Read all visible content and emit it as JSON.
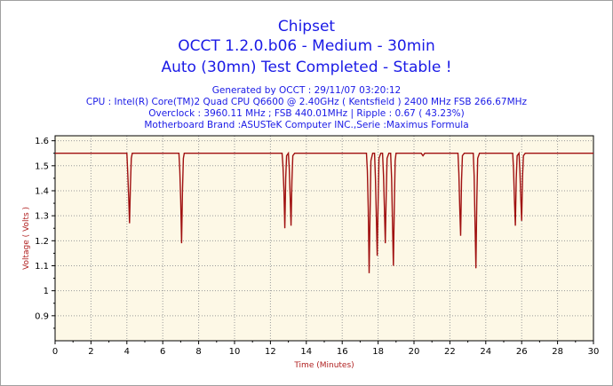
{
  "header": {
    "title1": "Chipset",
    "title2": "OCCT 1.2.0.b06 - Medium - 30min",
    "title3": "Auto (30mn) Test Completed - Stable !",
    "generated": "Generated by OCCT : 29/11/07 03:20:12",
    "cpu": "CPU : Intel(R) Core(TM)2 Quad CPU Q6600 @ 2.40GHz ( Kentsfield ) 2400 MHz FSB 266.67MHz",
    "overclock": "Overclock : 3960.11 MHz ; FSB 440.01MHz | Ripple : 0.67 ( 43.23%)",
    "motherboard": "Motherboard Brand :ASUSTeK Computer INC.,Serie :Maximus Formula"
  },
  "colors": {
    "line": "#a01010",
    "plot_bg": "#fdf8e6",
    "grid": "#9a9a9a",
    "title": "#1a1ae6",
    "axis_title": "#b02020"
  },
  "chart_data": {
    "type": "line",
    "xlabel": "Time (Minutes)",
    "ylabel": "Voltage ( Volts )",
    "xlim": [
      0,
      30
    ],
    "ylim": [
      0.8,
      1.62
    ],
    "xticks": [
      0,
      2,
      4,
      6,
      8,
      10,
      12,
      14,
      16,
      18,
      20,
      22,
      24,
      26,
      28,
      30
    ],
    "yticks": [
      0.9,
      1,
      1.1,
      1.2,
      1.3,
      1.4,
      1.5,
      1.6
    ],
    "ytick_labels": [
      "0.9",
      "1",
      "1.1",
      "1.2",
      "1.3",
      "1.4",
      "1.5",
      "1.6"
    ],
    "grid": true,
    "series": [
      {
        "name": "",
        "x": [
          0,
          4.0,
          4.05,
          4.1,
          4.15,
          4.2,
          4.25,
          4.3,
          6.9,
          6.95,
          7.0,
          7.05,
          7.1,
          7.15,
          7.2,
          12.65,
          12.7,
          12.75,
          12.8,
          12.85,
          12.9,
          13.0,
          13.05,
          13.1,
          13.15,
          13.2,
          13.25,
          13.35,
          17.35,
          17.4,
          17.45,
          17.5,
          17.55,
          17.6,
          17.7,
          17.8,
          17.85,
          17.9,
          17.95,
          18.0,
          18.05,
          18.15,
          18.25,
          18.3,
          18.35,
          18.4,
          18.45,
          18.5,
          18.6,
          18.7,
          18.75,
          18.8,
          18.85,
          18.9,
          18.95,
          19.0,
          19.1,
          20.4,
          20.5,
          20.6,
          22.45,
          22.5,
          22.55,
          22.6,
          22.65,
          22.7,
          22.8,
          23.3,
          23.35,
          23.4,
          23.45,
          23.5,
          23.55,
          23.65,
          25.5,
          25.55,
          25.6,
          25.65,
          25.7,
          25.75,
          25.85,
          25.9,
          25.95,
          26.0,
          26.05,
          26.1,
          26.2,
          30
        ],
        "y": [
          1.55,
          1.55,
          1.47,
          1.38,
          1.27,
          1.42,
          1.53,
          1.55,
          1.55,
          1.48,
          1.36,
          1.19,
          1.4,
          1.53,
          1.55,
          1.55,
          1.5,
          1.4,
          1.25,
          1.45,
          1.54,
          1.55,
          1.49,
          1.38,
          1.26,
          1.44,
          1.54,
          1.55,
          1.55,
          1.48,
          1.33,
          1.07,
          1.3,
          1.52,
          1.55,
          1.55,
          1.45,
          1.3,
          1.14,
          1.35,
          1.53,
          1.55,
          1.55,
          1.46,
          1.33,
          1.19,
          1.38,
          1.53,
          1.55,
          1.55,
          1.45,
          1.27,
          1.1,
          1.33,
          1.52,
          1.55,
          1.55,
          1.55,
          1.54,
          1.55,
          1.55,
          1.47,
          1.33,
          1.22,
          1.44,
          1.54,
          1.55,
          1.55,
          1.46,
          1.27,
          1.09,
          1.36,
          1.53,
          1.55,
          1.55,
          1.48,
          1.36,
          1.26,
          1.45,
          1.54,
          1.55,
          1.48,
          1.37,
          1.28,
          1.46,
          1.54,
          1.55,
          1.55
        ]
      }
    ]
  }
}
